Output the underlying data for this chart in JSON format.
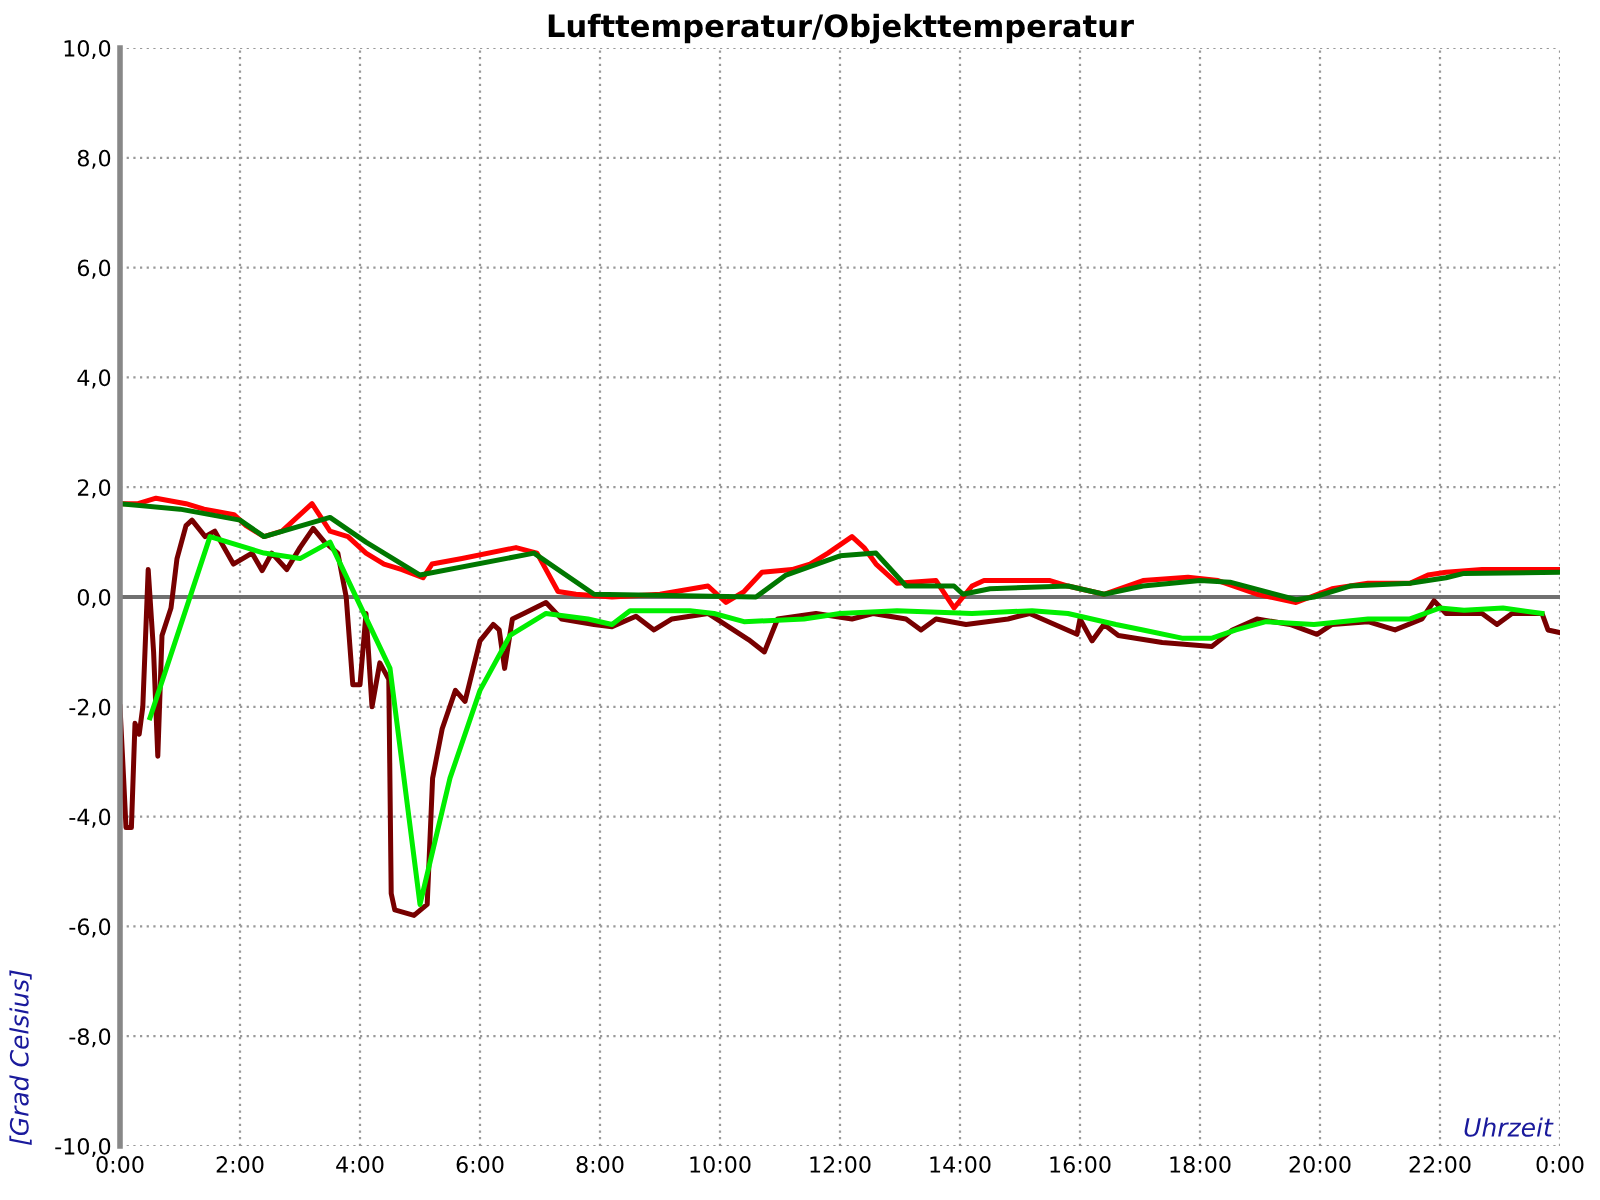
{
  "chart_data": {
    "type": "line",
    "title": "Lufttemperatur/Objekttemperatur",
    "xlabel": "Uhrzeit",
    "ylabel": "[Grad Celsius]",
    "xlim": [
      0,
      24
    ],
    "ylim": [
      -10,
      10
    ],
    "xticks": [
      {
        "value": 0,
        "label": "0:00"
      },
      {
        "value": 2,
        "label": "2:00"
      },
      {
        "value": 4,
        "label": "4:00"
      },
      {
        "value": 6,
        "label": "6:00"
      },
      {
        "value": 8,
        "label": "8:00"
      },
      {
        "value": 10,
        "label": "10:00"
      },
      {
        "value": 12,
        "label": "12:00"
      },
      {
        "value": 14,
        "label": "14:00"
      },
      {
        "value": 16,
        "label": "16:00"
      },
      {
        "value": 18,
        "label": "18:00"
      },
      {
        "value": 20,
        "label": "20:00"
      },
      {
        "value": 22,
        "label": "22:00"
      },
      {
        "value": 24,
        "label": "0:00"
      }
    ],
    "yticks": [
      {
        "value": -10,
        "label": "-10,0"
      },
      {
        "value": -8,
        "label": "-8,0"
      },
      {
        "value": -6,
        "label": "-6,0"
      },
      {
        "value": -4,
        "label": "-4,0"
      },
      {
        "value": -2,
        "label": "-2,0"
      },
      {
        "value": 0,
        "label": "0,0"
      },
      {
        "value": 2,
        "label": "2,0"
      },
      {
        "value": 4,
        "label": "4,0"
      },
      {
        "value": 6,
        "label": "6,0"
      },
      {
        "value": 8,
        "label": "8,0"
      },
      {
        "value": 10,
        "label": "10,0"
      }
    ],
    "grid": true,
    "ref_lines": [
      {
        "axis": "y",
        "value": 0,
        "color": "#707070"
      }
    ],
    "series": [
      {
        "color": "#ff0000",
        "x": [
          0,
          0.3,
          0.6,
          1.1,
          1.4,
          1.9,
          2.1,
          2.4,
          2.7,
          3.0,
          3.2,
          3.5,
          3.8,
          4.1,
          4.4,
          4.7,
          5.05,
          5.2,
          5.7,
          6.6,
          6.95,
          7.3,
          7.6,
          8.2,
          9.0,
          9.8,
          10.1,
          10.4,
          10.7,
          11.2,
          11.5,
          11.8,
          12.2,
          12.4,
          12.6,
          12.95,
          13.6,
          13.9,
          14.2,
          14.4,
          14.8,
          15.5,
          15.8,
          16.4,
          17.05,
          17.8,
          18.3,
          18.95,
          19.6,
          20.2,
          20.8,
          21.5,
          21.8,
          22.1,
          22.7,
          23.4,
          24
        ],
        "values": [
          1.7,
          1.7,
          1.8,
          1.7,
          1.6,
          1.5,
          1.3,
          1.1,
          1.2,
          1.5,
          1.7,
          1.2,
          1.1,
          0.8,
          0.6,
          0.5,
          0.35,
          0.6,
          0.7,
          0.9,
          0.8,
          0.1,
          0.05,
          0.0,
          0.05,
          0.2,
          -0.1,
          0.1,
          0.45,
          0.5,
          0.6,
          0.8,
          1.1,
          0.9,
          0.6,
          0.25,
          0.3,
          -0.2,
          0.2,
          0.3,
          0.3,
          0.3,
          0.2,
          0.05,
          0.3,
          0.36,
          0.3,
          0.05,
          -0.1,
          0.15,
          0.25,
          0.25,
          0.4,
          0.45,
          0.5,
          0.5,
          0.5
        ]
      },
      {
        "color": "#007700",
        "x": [
          0,
          1.0,
          2.0,
          2.4,
          3.5,
          4.1,
          5.0,
          6.9,
          7.9,
          10.6,
          11.1,
          12.0,
          12.6,
          13.1,
          13.9,
          14.05,
          14.5,
          15.8,
          16.4,
          17.05,
          18.0,
          18.5,
          19.6,
          19.9,
          20.5,
          21.5,
          22.1,
          22.4,
          24
        ],
        "values": [
          1.7,
          1.6,
          1.4,
          1.1,
          1.45,
          1.0,
          0.4,
          0.8,
          0.05,
          0.0,
          0.4,
          0.75,
          0.8,
          0.2,
          0.2,
          0.05,
          0.15,
          0.2,
          0.05,
          0.2,
          0.3,
          0.27,
          -0.05,
          0.0,
          0.2,
          0.25,
          0.35,
          0.43,
          0.45
        ]
      },
      {
        "color": "#770000",
        "x": [
          0,
          0.06,
          0.1,
          0.19,
          0.25,
          0.32,
          0.38,
          0.47,
          0.56,
          0.63,
          0.7,
          0.85,
          0.95,
          1.1,
          1.2,
          1.42,
          1.58,
          1.89,
          2.2,
          2.37,
          2.53,
          2.78,
          3.0,
          3.22,
          3.41,
          3.63,
          3.77,
          3.88,
          4.0,
          4.1,
          4.2,
          4.33,
          4.48,
          4.52,
          4.58,
          4.9,
          5.12,
          5.21,
          5.37,
          5.59,
          5.75,
          6.0,
          6.22,
          6.32,
          6.41,
          6.54,
          6.73,
          7.1,
          7.36,
          7.9,
          8.2,
          8.6,
          8.9,
          9.2,
          9.8,
          10.48,
          10.74,
          10.96,
          11.6,
          12.2,
          12.55,
          13.1,
          13.35,
          13.6,
          14.1,
          14.8,
          15.16,
          15.95,
          16.0,
          16.2,
          16.4,
          16.64,
          17.37,
          18.2,
          18.54,
          18.95,
          19.5,
          19.95,
          20.2,
          20.8,
          21.25,
          21.7,
          21.9,
          22.1,
          22.7,
          22.95,
          23.2,
          23.7,
          23.8,
          24
        ],
        "values": [
          -2.0,
          -3.3,
          -4.2,
          -4.2,
          -2.3,
          -2.5,
          -2.0,
          0.5,
          -1.0,
          -2.9,
          -0.7,
          -0.2,
          0.7,
          1.3,
          1.4,
          1.1,
          1.2,
          0.6,
          0.8,
          0.48,
          0.8,
          0.5,
          0.9,
          1.25,
          1.0,
          0.8,
          0.0,
          -1.6,
          -1.6,
          -0.3,
          -2.0,
          -1.2,
          -1.5,
          -5.4,
          -5.7,
          -5.8,
          -5.6,
          -3.3,
          -2.4,
          -1.7,
          -1.9,
          -0.8,
          -0.5,
          -0.6,
          -1.3,
          -0.4,
          -0.3,
          -0.1,
          -0.4,
          -0.5,
          -0.54,
          -0.35,
          -0.6,
          -0.4,
          -0.3,
          -0.78,
          -1.0,
          -0.4,
          -0.3,
          -0.4,
          -0.3,
          -0.4,
          -0.6,
          -0.4,
          -0.5,
          -0.4,
          -0.3,
          -0.68,
          -0.4,
          -0.8,
          -0.5,
          -0.7,
          -0.83,
          -0.9,
          -0.6,
          -0.4,
          -0.5,
          -0.68,
          -0.5,
          -0.45,
          -0.6,
          -0.4,
          -0.07,
          -0.3,
          -0.3,
          -0.5,
          -0.3,
          -0.3,
          -0.6,
          -0.65
        ]
      },
      {
        "color": "#00ee00",
        "x": [
          0.5,
          1.5,
          2.4,
          3.0,
          3.5,
          4.5,
          5.0,
          5.5,
          6.0,
          6.5,
          7.1,
          7.8,
          8.2,
          8.5,
          9.5,
          9.9,
          10.4,
          11.4,
          12.0,
          12.95,
          14.2,
          15.2,
          15.8,
          16.6,
          17.05,
          17.7,
          18.2,
          18.6,
          19.1,
          19.9,
          20.8,
          21.5,
          22.0,
          22.4,
          23.05,
          23.7
        ],
        "values": [
          -2.2,
          1.1,
          0.8,
          0.7,
          1.0,
          -1.3,
          -5.6,
          -3.3,
          -1.7,
          -0.7,
          -0.3,
          -0.4,
          -0.5,
          -0.25,
          -0.25,
          -0.3,
          -0.45,
          -0.4,
          -0.3,
          -0.25,
          -0.3,
          -0.25,
          -0.3,
          -0.5,
          -0.6,
          -0.75,
          -0.75,
          -0.6,
          -0.45,
          -0.5,
          -0.4,
          -0.4,
          -0.2,
          -0.24,
          -0.2,
          -0.3
        ]
      }
    ]
  }
}
